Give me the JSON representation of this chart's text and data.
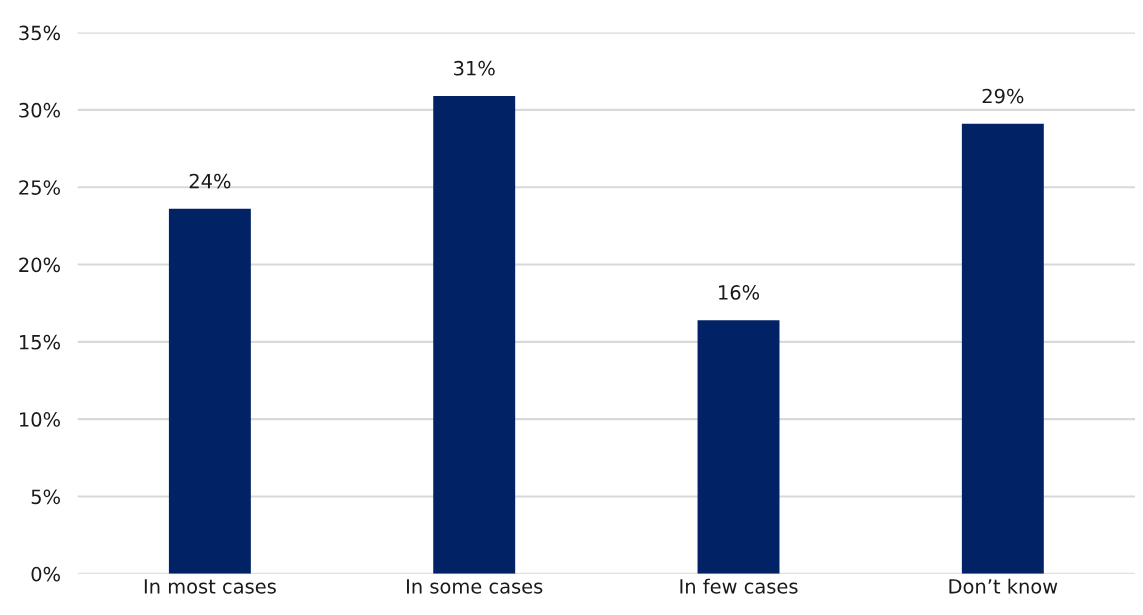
{
  "chart_data": {
    "type": "bar",
    "categories": [
      "In most cases",
      "In some cases",
      "In few cases",
      "Don’t know"
    ],
    "values": [
      23.6,
      30.9,
      16.4,
      29.1
    ],
    "value_labels": [
      "24%",
      "31%",
      "16%",
      "29%"
    ],
    "color": "#012366",
    "ylim": [
      0,
      35
    ],
    "yticks": [
      {
        "value": 0,
        "label": "0%"
      },
      {
        "value": 5,
        "label": "5%"
      },
      {
        "value": 10,
        "label": "10%"
      },
      {
        "value": 15,
        "label": "15%"
      },
      {
        "value": 20,
        "label": "20%"
      },
      {
        "value": 25,
        "label": "25%"
      },
      {
        "value": 30,
        "label": "30%"
      },
      {
        "value": 35,
        "label": "35%"
      }
    ],
    "grid": "y"
  }
}
